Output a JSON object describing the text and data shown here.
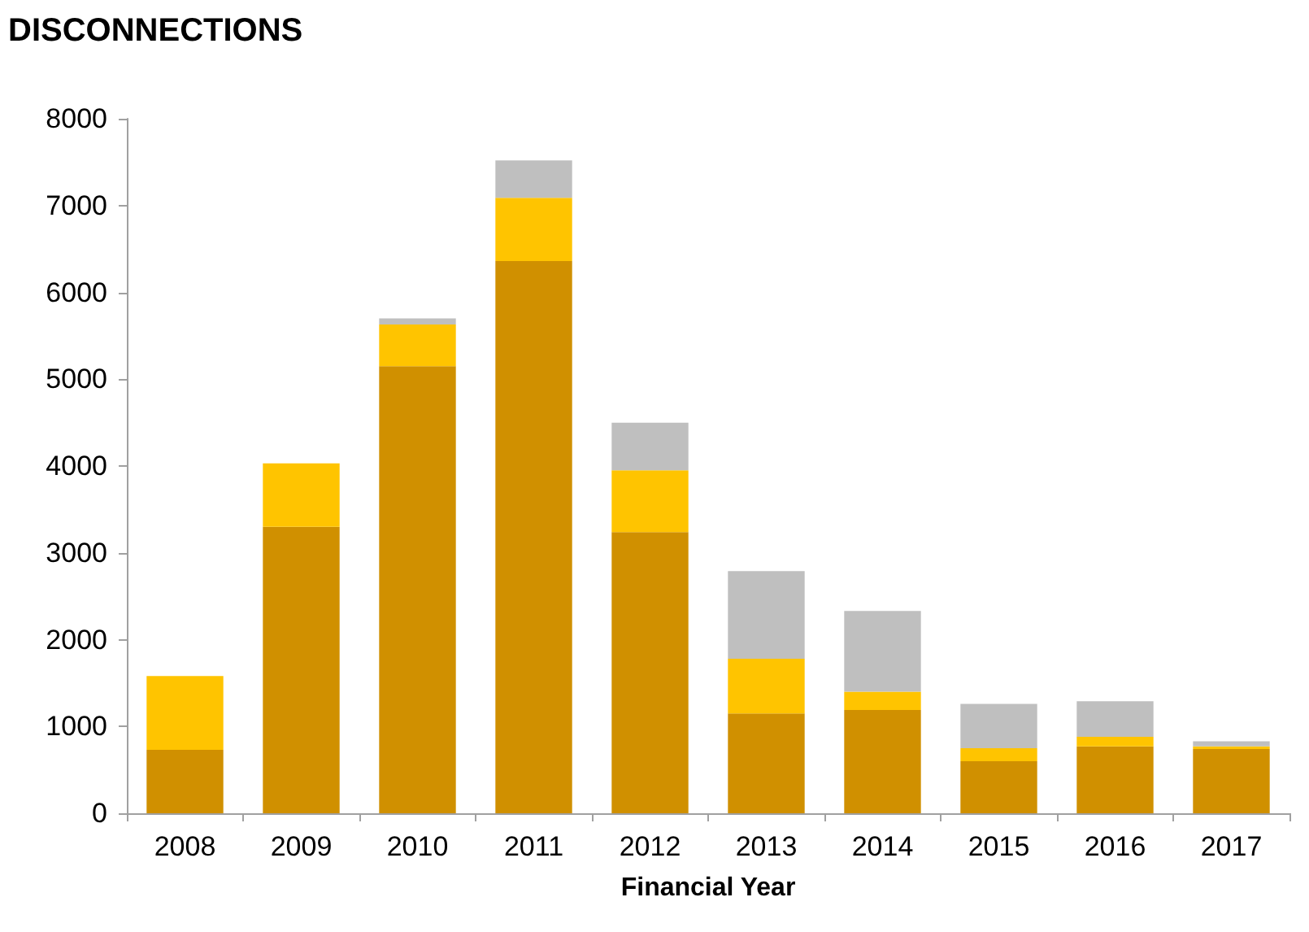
{
  "chart_data": {
    "type": "bar",
    "title": "DISCONNECTIONS",
    "xlabel": "Financial Year",
    "stacked": true,
    "categories": [
      "2008",
      "2009",
      "2010",
      "2011",
      "2012",
      "2013",
      "2014",
      "2015",
      "2016",
      "2017"
    ],
    "series": [
      {
        "color": "#d09000",
        "values": [
          730,
          3300,
          5150,
          6360,
          3240,
          1150,
          1190,
          600,
          770,
          740
        ]
      },
      {
        "color": "#ffc400",
        "values": [
          850,
          730,
          480,
          730,
          710,
          630,
          210,
          150,
          110,
          30
        ]
      },
      {
        "color": "#bfbfbf",
        "values": [
          0,
          0,
          70,
          430,
          550,
          1010,
          930,
          510,
          410,
          60
        ]
      }
    ],
    "ylim": [
      0,
      8000
    ],
    "yticks": [
      0,
      1000,
      2000,
      3000,
      4000,
      5000,
      6000,
      7000,
      8000
    ],
    "grid": false
  }
}
